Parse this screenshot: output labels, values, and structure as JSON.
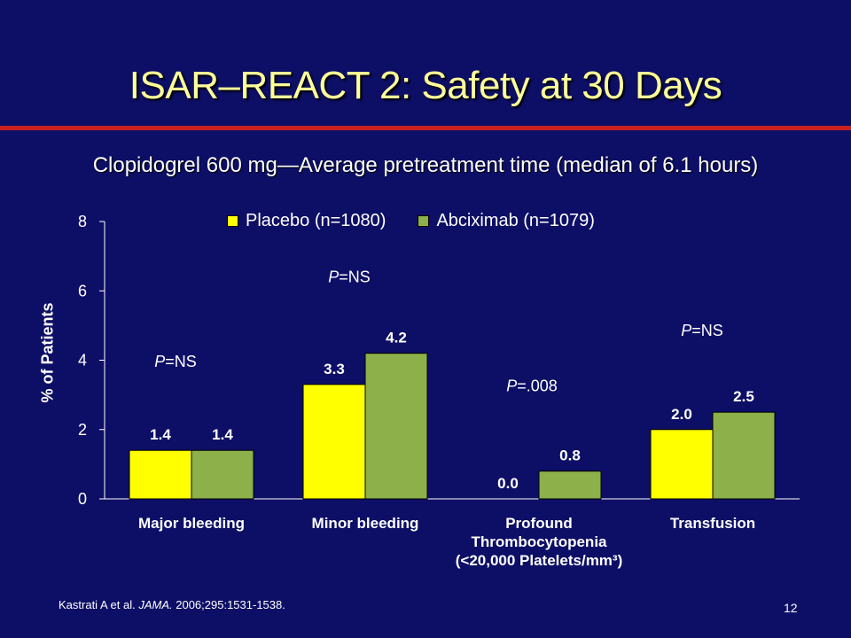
{
  "slide": {
    "title": "ISAR–REACT 2: Safety at 30 Days",
    "subtitle": "Clopidogrel 600 mg—Average pretreatment time (median of 6.1 hours)",
    "footer_authors": "Kastrati A et al. ",
    "footer_journal": "JAMA.",
    "footer_rest": " 2006;295:1531-1538.",
    "page_number": "12"
  },
  "colors": {
    "background": "#0d0f66",
    "title": "#ffff99",
    "rule": "#cc1f1f",
    "placebo": "#ffff00",
    "abciximab": "#8db04a"
  },
  "chart_data": {
    "type": "bar",
    "ylabel": "% of Patients",
    "ylim": [
      0,
      8
    ],
    "yticks": [
      0,
      2,
      4,
      6,
      8
    ],
    "categories": [
      [
        "Major bleeding"
      ],
      [
        "Minor bleeding"
      ],
      [
        "Profound",
        "Thrombocytopenia",
        "(<20,000 Platelets/mm³)"
      ],
      [
        "Transfusion"
      ]
    ],
    "series": [
      {
        "name": "Placebo (n=1080)",
        "values": [
          1.4,
          3.3,
          0.0,
          2.0
        ],
        "labels": [
          "1.4",
          "3.3",
          "0.0",
          "2.0"
        ]
      },
      {
        "name": "Abciximab (n=1079)",
        "values": [
          1.4,
          4.2,
          0.8,
          2.5
        ],
        "labels": [
          "1.4",
          "4.2",
          "0.8",
          "2.5"
        ]
      }
    ],
    "p_values": [
      "P=NS",
      "P=NS",
      "P=.008",
      "P=NS"
    ],
    "legend_position": "top"
  }
}
